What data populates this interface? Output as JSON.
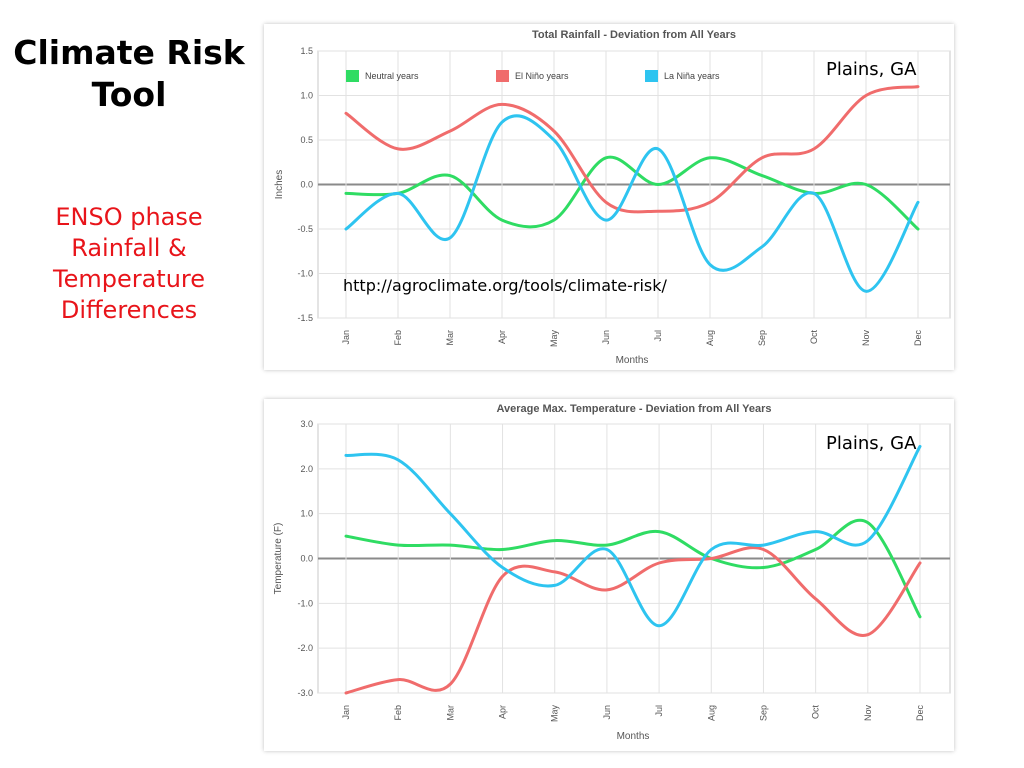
{
  "slide": {
    "title_lines": [
      "Climate Risk",
      "Tool"
    ],
    "subtitle_lines": [
      "ENSO phase",
      "Rainfall &",
      "Temperature",
      "Differences"
    ],
    "url": "http://agroclimate.org/tools/climate-risk/",
    "title_color": "#000000",
    "subtitle_color": "#e8141a"
  },
  "chart_data": [
    {
      "type": "line",
      "title": "Total Rainfall - Deviation from All Years",
      "location_label": "Plains, GA",
      "xlabel": "Months",
      "ylabel": "Inches",
      "categories": [
        "Jan",
        "Feb",
        "Mar",
        "Apr",
        "May",
        "Jun",
        "Jul",
        "Aug",
        "Sep",
        "Oct",
        "Nov",
        "Dec"
      ],
      "ylim": [
        -1.5,
        1.5
      ],
      "yticks": [
        "1.5",
        "1.0",
        "0.5",
        "0.0",
        "-0.5",
        "-1.0",
        "-1.5"
      ],
      "grid": true,
      "legend_position": "top-left",
      "series": [
        {
          "name": "Neutral years",
          "color": "#2fdc63",
          "values": [
            -0.1,
            -0.1,
            0.1,
            -0.4,
            -0.4,
            0.3,
            0.0,
            0.3,
            0.1,
            -0.1,
            0.0,
            -0.5
          ]
        },
        {
          "name": "El Niño years",
          "color": "#f06c6c",
          "values": [
            0.8,
            0.4,
            0.6,
            0.9,
            0.6,
            -0.2,
            -0.3,
            -0.2,
            0.3,
            0.4,
            1.0,
            1.1
          ]
        },
        {
          "name": "La Niña years",
          "color": "#2ec4f0",
          "values": [
            -0.5,
            -0.1,
            -0.6,
            0.7,
            0.5,
            -0.4,
            0.4,
            -0.9,
            -0.7,
            -0.1,
            -1.2,
            -0.2
          ]
        }
      ]
    },
    {
      "type": "line",
      "title": "Average Max. Temperature - Deviation from All Years",
      "location_label": "Plains, GA",
      "xlabel": "Months",
      "ylabel": "Temperature (F)",
      "categories": [
        "Jan",
        "Feb",
        "Mar",
        "Apr",
        "May",
        "Jun",
        "Jul",
        "Aug",
        "Sep",
        "Oct",
        "Nov",
        "Dec"
      ],
      "ylim": [
        -3.0,
        3.0
      ],
      "yticks": [
        "3.0",
        "2.0",
        "1.0",
        "0.0",
        "-1.0",
        "-2.0",
        "-3.0"
      ],
      "grid": true,
      "legend_position": "none",
      "series": [
        {
          "name": "Neutral years",
          "color": "#2fdc63",
          "values": [
            0.5,
            0.3,
            0.3,
            0.2,
            0.4,
            0.3,
            0.6,
            0.0,
            -0.2,
            0.2,
            0.8,
            -1.3
          ]
        },
        {
          "name": "El Niño years",
          "color": "#f06c6c",
          "values": [
            -3.0,
            -2.7,
            -2.8,
            -0.4,
            -0.3,
            -0.7,
            -0.1,
            0.0,
            0.2,
            -0.9,
            -1.7,
            -0.1
          ]
        },
        {
          "name": "La Niña years",
          "color": "#2ec4f0",
          "values": [
            2.3,
            2.2,
            1.0,
            -0.2,
            -0.6,
            0.2,
            -1.5,
            0.2,
            0.3,
            0.6,
            0.4,
            2.5
          ]
        }
      ]
    }
  ]
}
